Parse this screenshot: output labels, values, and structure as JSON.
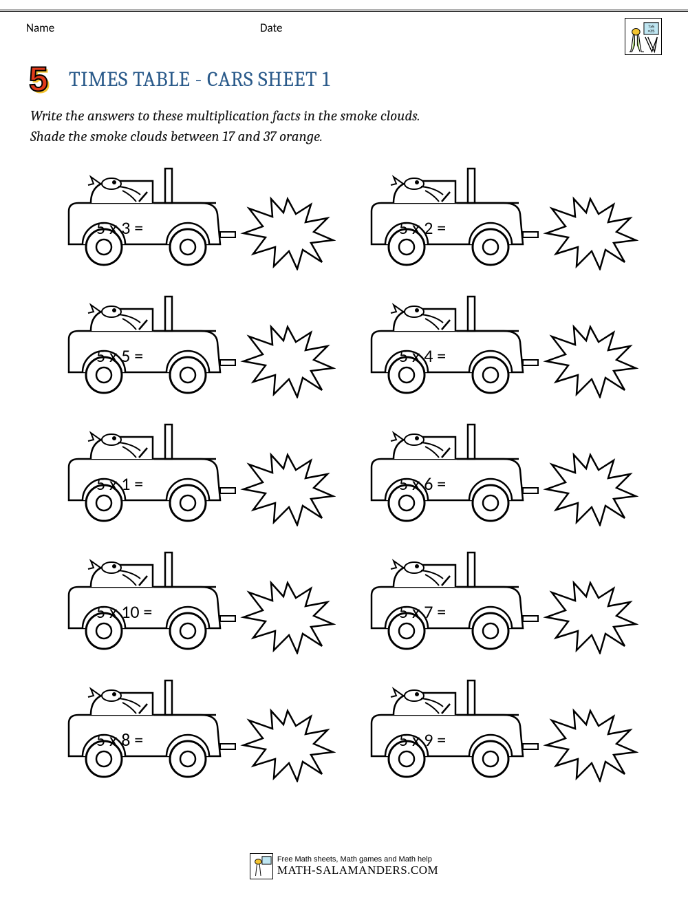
{
  "header": {
    "name_label": "Name",
    "date_label": "Date"
  },
  "title": {
    "digit": "5",
    "text": "TIMES TABLE - CARS SHEET 1",
    "digit_color": "#e03a1a",
    "digit_shadow": "#f4c430",
    "title_color": "#2a5a8a",
    "title_fontsize": 30
  },
  "instructions": {
    "line1": "Write the answers to these multiplication facts in the smoke clouds.",
    "line2": "Shade the smoke clouds between 17 and 37 orange."
  },
  "problems": [
    {
      "eq": "5 x 3 ="
    },
    {
      "eq": "5 x 2 ="
    },
    {
      "eq": "5 x 5 ="
    },
    {
      "eq": "5 x 4 ="
    },
    {
      "eq": "5 x 1 ="
    },
    {
      "eq": "5 x 6 ="
    },
    {
      "eq": "5 x 10 ="
    },
    {
      "eq": "5 x 7 ="
    },
    {
      "eq": "5 x 8 ="
    },
    {
      "eq": "5 x 9 ="
    }
  ],
  "style": {
    "equation_fontsize": 26,
    "stroke": "#000000",
    "fill": "#ffffff",
    "stroke_width": 2,
    "grid_columns": 2,
    "grid_rows": 5,
    "row_gap": 28,
    "col_gap": 30
  },
  "footer": {
    "tagline": "Free Math sheets, Math games and Math help",
    "site": "MATH-SALAMANDERS.COM"
  },
  "logo": {
    "card_text": "7x5\n=35",
    "card_bg": "#bfe6f2"
  }
}
